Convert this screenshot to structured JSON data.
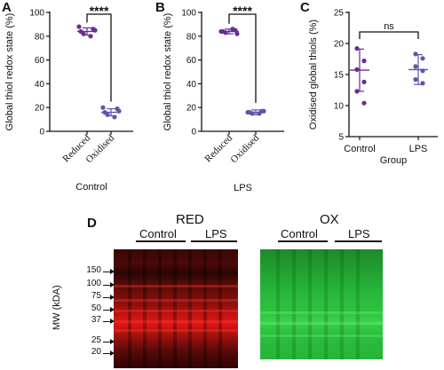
{
  "panel_letters": {
    "a": "A",
    "b": "B",
    "c": "C",
    "d": "D"
  },
  "chart_data": [
    {
      "type": "scatter",
      "panel": "A",
      "ylabel": "Global thiol redox state (%)",
      "xlabel": "Control",
      "categories": [
        "Reduced",
        "Oxidised"
      ],
      "ylim": [
        0,
        100
      ],
      "yticks": [
        0,
        20,
        40,
        60,
        80,
        100
      ],
      "points": [
        [
          84,
          86,
          82,
          80,
          88,
          85
        ],
        [
          16,
          19,
          14,
          12,
          20,
          17
        ]
      ],
      "means": [
        84,
        16
      ],
      "sd": [
        3,
        3
      ],
      "significance": "****",
      "colors": [
        "#6a2c91",
        "#5a56a8"
      ]
    },
    {
      "type": "scatter",
      "panel": "B",
      "ylabel": "Global thiol redox state (%)",
      "xlabel": "LPS",
      "categories": [
        "Reduced",
        "Oxidised"
      ],
      "ylim": [
        0,
        100
      ],
      "yticks": [
        0,
        20,
        40,
        60,
        80,
        100
      ],
      "points": [
        [
          84,
          85,
          83,
          86,
          84,
          82
        ],
        [
          16,
          17,
          15,
          15,
          16,
          17
        ]
      ],
      "means": [
        84,
        16
      ],
      "sd": [
        2,
        2
      ],
      "significance": "****",
      "colors": [
        "#6a2c91",
        "#5a56a8"
      ]
    },
    {
      "type": "scatter",
      "panel": "C",
      "ylabel": "Oxidised global thiols (%)",
      "xlabel": "Group",
      "categories": [
        "Control",
        "LPS"
      ],
      "ylim": [
        5,
        25
      ],
      "yticks": [
        5,
        10,
        15,
        20,
        25
      ],
      "points": [
        [
          19.2,
          17.2,
          15.8,
          13.8,
          12.3,
          10.4
        ],
        [
          18.3,
          17.6,
          16.3,
          15.6,
          14.2,
          13.6
        ]
      ],
      "means": [
        15.7,
        15.8
      ],
      "sd": [
        3.4,
        2.4
      ],
      "significance": "ns",
      "colors": [
        "#6a2c91",
        "#5a56a8"
      ]
    }
  ],
  "blot": {
    "red_title": "RED",
    "ox_title": "OX",
    "group_control": "Control",
    "group_lps": "LPS",
    "mw_label": "MW (kDA)",
    "mw_markers": [
      "150",
      "100",
      "75",
      "50",
      "37",
      "25",
      "20"
    ]
  }
}
